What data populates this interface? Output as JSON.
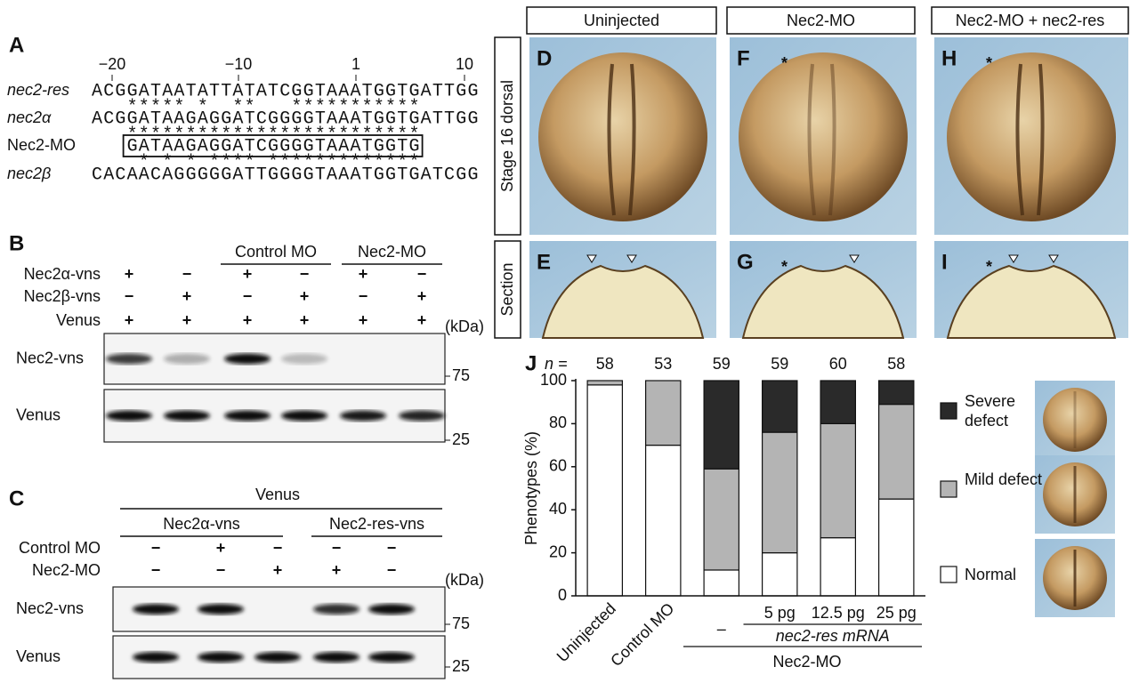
{
  "panel_a": {
    "label": "A",
    "ruler": [
      "−20",
      "−10",
      "1",
      "10"
    ],
    "sequences": [
      {
        "name": "nec2-res",
        "sequence": "ACGGATAATATTATATCGGTAAATGGTGATTGG"
      },
      {
        "name": "nec2α",
        "sequence": "ACGGATAAGAGGATCGGGGTAAATGGTGATTGG"
      },
      {
        "name": "Nec2-MO",
        "sequence": "GATAAGAGGATCGGGGTAAATGGTG"
      },
      {
        "name": "nec2β",
        "sequence": "CACAACAGGGGGATTGGGGTAAATGGTGATCGG"
      }
    ],
    "identity": [
      "   ***** *  **   ***********",
      "   *************************",
      "    * * * **** *************"
    ]
  },
  "panel_b": {
    "label": "B",
    "groups": [
      "Control MO",
      "Nec2-MO"
    ],
    "rows": [
      {
        "name": "Nec2α-vns",
        "lanes": [
          "+",
          "−",
          "+",
          "−",
          "+",
          "−"
        ]
      },
      {
        "name": "Nec2β-vns",
        "lanes": [
          "−",
          "+",
          "−",
          "+",
          "−",
          "+"
        ]
      },
      {
        "name": "Venus",
        "lanes": [
          "+",
          "+",
          "+",
          "+",
          "+",
          "+"
        ]
      }
    ],
    "kda": "(kDa)",
    "blots": [
      {
        "name": "Nec2-vns",
        "marker": "75"
      },
      {
        "name": "Venus",
        "marker": "25"
      }
    ]
  },
  "panel_c": {
    "label": "C",
    "header": "Venus",
    "groups": [
      "Nec2α-vns",
      "Nec2-res-vns"
    ],
    "rows": [
      {
        "name": "Control MO",
        "lanes": [
          "−",
          "+",
          "−",
          "−",
          "−"
        ]
      },
      {
        "name": "Nec2-MO",
        "lanes": [
          "−",
          "−",
          "+",
          "+",
          "−"
        ]
      }
    ],
    "kda": "(kDa)",
    "blots": [
      {
        "name": "Nec2-vns",
        "marker": "75"
      },
      {
        "name": "Venus",
        "marker": "25"
      }
    ]
  },
  "images": {
    "columns": [
      "Uninjected",
      "Nec2-MO",
      "Nec2-MO + nec2-res"
    ],
    "rows": [
      "Stage 16 dorsal",
      "Section"
    ],
    "panels": [
      [
        "D",
        "F",
        "H"
      ],
      [
        "E",
        "G",
        "I"
      ]
    ],
    "asterisk": "*"
  },
  "chart_data": {
    "type": "bar",
    "stacked": true,
    "label": "J",
    "n_label": "n =",
    "n": [
      58,
      53,
      59,
      59,
      60,
      58
    ],
    "ylabel": "Phenotypes (%)",
    "ylim": [
      0,
      100
    ],
    "yticks": [
      0,
      20,
      40,
      60,
      80,
      100
    ],
    "categories": [
      "Uninjected",
      "Control MO",
      "–",
      "5 pg",
      "12.5 pg",
      "25 pg"
    ],
    "group_labels": [
      "nec2-res mRNA",
      "Nec2-MO"
    ],
    "series": [
      {
        "name": "Normal",
        "color": "#ffffff",
        "values": [
          98,
          70,
          12,
          20,
          27,
          45
        ]
      },
      {
        "name": "Mild defect",
        "color": "#b4b4b4",
        "values": [
          2,
          30,
          47,
          56,
          53,
          44
        ]
      },
      {
        "name": "Severe defect",
        "color": "#2a2a2a",
        "values": [
          0,
          0,
          41,
          24,
          20,
          11
        ]
      }
    ]
  }
}
